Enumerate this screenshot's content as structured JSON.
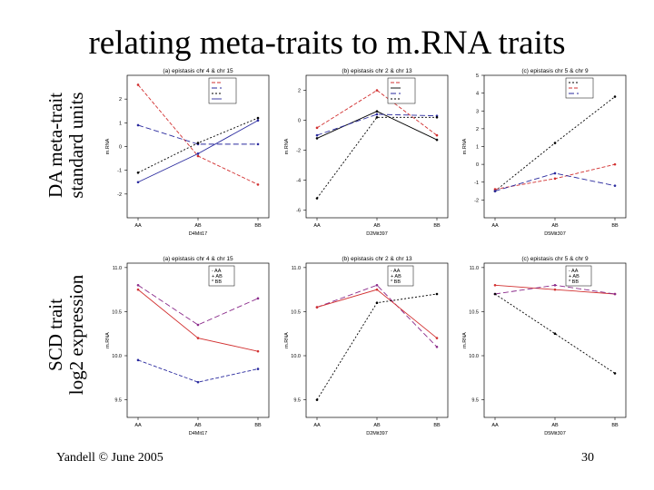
{
  "slide": {
    "title": "relating meta-traits to m.RNA traits",
    "row_labels": [
      {
        "line1": "DA meta-trait",
        "line2": "standard units"
      },
      {
        "line1": "SCD trait",
        "line2": "log2 expression"
      }
    ],
    "footer_left": "Yandell © June 2005",
    "footer_right": "30"
  },
  "colors": {
    "black": "#000000",
    "red": "#d23030",
    "blue": "#2a2a9e",
    "purple": "#8a2a8a"
  },
  "chart_data": [
    {
      "type": "line",
      "title": "(a) epistasis chr 4 & chr 15",
      "xlabel": "D4Mit17",
      "ylabel": "m.RNA",
      "categories": [
        "AA",
        "AB",
        "BB"
      ],
      "ylim": [
        -3,
        3
      ],
      "yticks": [
        -2,
        -1,
        0,
        1,
        2
      ],
      "legend": "top-right",
      "series": [
        {
          "color": "#d23030",
          "dash": "4 2",
          "values": [
            2.6,
            -0.4,
            -1.6
          ]
        },
        {
          "color": "#2a2a9e",
          "dash": "6 3",
          "values": [
            0.9,
            0.1,
            0.1
          ]
        },
        {
          "color": "#000000",
          "dash": "2 2",
          "values": [
            -1.1,
            0.15,
            1.2
          ]
        },
        {
          "color": "#2a2a9e",
          "dash": "",
          "values": [
            -1.5,
            -0.3,
            1.1
          ]
        }
      ]
    },
    {
      "type": "line",
      "title": "(b) epistasis chr 2 & chr 13",
      "xlabel": "D2Mit397",
      "ylabel": "m.RNA",
      "categories": [
        "AA",
        "AB",
        "BB"
      ],
      "ylim": [
        -6.5,
        3
      ],
      "yticks": [
        -6,
        -4,
        -2,
        0,
        2
      ],
      "legend": "top-right",
      "series": [
        {
          "color": "#d23030",
          "dash": "4 2",
          "values": [
            -0.5,
            2.0,
            -1.0
          ]
        },
        {
          "color": "#000000",
          "dash": "",
          "values": [
            -1.2,
            0.6,
            -1.3
          ]
        },
        {
          "color": "#2a2a9e",
          "dash": "6 3",
          "values": [
            -1.0,
            0.4,
            0.3
          ]
        },
        {
          "color": "#000000",
          "dash": "2 2",
          "values": [
            -5.2,
            0.2,
            0.2
          ]
        }
      ]
    },
    {
      "type": "line",
      "title": "(c) epistasis chr 5 & chr 9",
      "xlabel": "D5Mit307",
      "ylabel": "m.RNA",
      "categories": [
        "AA",
        "AB",
        "BB"
      ],
      "ylim": [
        -3,
        5
      ],
      "yticks": [
        -2,
        -1,
        0,
        1,
        2,
        3,
        4,
        5
      ],
      "legend": "top-right",
      "series": [
        {
          "color": "#000000",
          "dash": "2 2",
          "values": [
            -1.5,
            1.2,
            3.8
          ]
        },
        {
          "color": "#d23030",
          "dash": "4 2",
          "values": [
            -1.4,
            -0.8,
            0.0
          ]
        },
        {
          "color": "#2a2a9e",
          "dash": "6 3",
          "values": [
            -1.5,
            -0.5,
            -1.2
          ]
        }
      ]
    },
    {
      "type": "line",
      "title": "(a) epistasis chr 4 & chr 15",
      "xlabel": "D4Mit17",
      "ylabel": "m.RNA",
      "categories": [
        "AA",
        "AB",
        "BB"
      ],
      "ylim": [
        9.3,
        11.05
      ],
      "yticks": [
        9.5,
        10.0,
        10.5,
        11.0
      ],
      "ytick_labels": [
        "9.5",
        "10.0",
        "10.5",
        "11.0"
      ],
      "legend": "top-right",
      "legend_entries": [
        "AA",
        "AB",
        "BB"
      ],
      "series": [
        {
          "color": "#d23030",
          "dash": "",
          "values": [
            10.75,
            10.2,
            10.05
          ]
        },
        {
          "color": "#8a2a8a",
          "dash": "6 3",
          "values": [
            10.8,
            10.35,
            10.65
          ]
        },
        {
          "color": "#2a2a9e",
          "dash": "4 2",
          "values": [
            9.95,
            9.7,
            9.85
          ]
        }
      ]
    },
    {
      "type": "line",
      "title": "(b) epistasis chr 2 & chr 13",
      "xlabel": "D2Mit397",
      "ylabel": "m.RNA",
      "categories": [
        "AA",
        "AB",
        "BB"
      ],
      "ylim": [
        9.3,
        11.05
      ],
      "yticks": [
        9.5,
        10.0,
        10.5,
        11.0
      ],
      "ytick_labels": [
        "9.5",
        "10.0",
        "10.5",
        "11.0"
      ],
      "legend": "top-right",
      "legend_entries": [
        "AA",
        "AB",
        "BB"
      ],
      "series": [
        {
          "color": "#8a2a8a",
          "dash": "6 3",
          "values": [
            10.55,
            10.8,
            10.1
          ]
        },
        {
          "color": "#d23030",
          "dash": "",
          "values": [
            10.55,
            10.75,
            10.2
          ]
        },
        {
          "color": "#000000",
          "dash": "2 2",
          "values": [
            9.5,
            10.6,
            10.7
          ]
        }
      ]
    },
    {
      "type": "line",
      "title": "(c) epistasis chr 5 & chr 9",
      "xlabel": "D5Mit307",
      "ylabel": "m.RNA",
      "categories": [
        "AA",
        "AB",
        "BB"
      ],
      "ylim": [
        9.3,
        11.05
      ],
      "yticks": [
        9.5,
        10.0,
        10.5,
        11.0
      ],
      "ytick_labels": [
        "9.5",
        "10.0",
        "10.5",
        "11.0"
      ],
      "legend": "top-right",
      "legend_entries": [
        "AA",
        "AB",
        "BB"
      ],
      "series": [
        {
          "color": "#d23030",
          "dash": "",
          "values": [
            10.8,
            10.75,
            10.7
          ]
        },
        {
          "color": "#8a2a8a",
          "dash": "6 3",
          "values": [
            10.7,
            10.8,
            10.7
          ]
        },
        {
          "color": "#000000",
          "dash": "2 2",
          "values": [
            10.7,
            10.25,
            9.8
          ]
        }
      ]
    }
  ]
}
